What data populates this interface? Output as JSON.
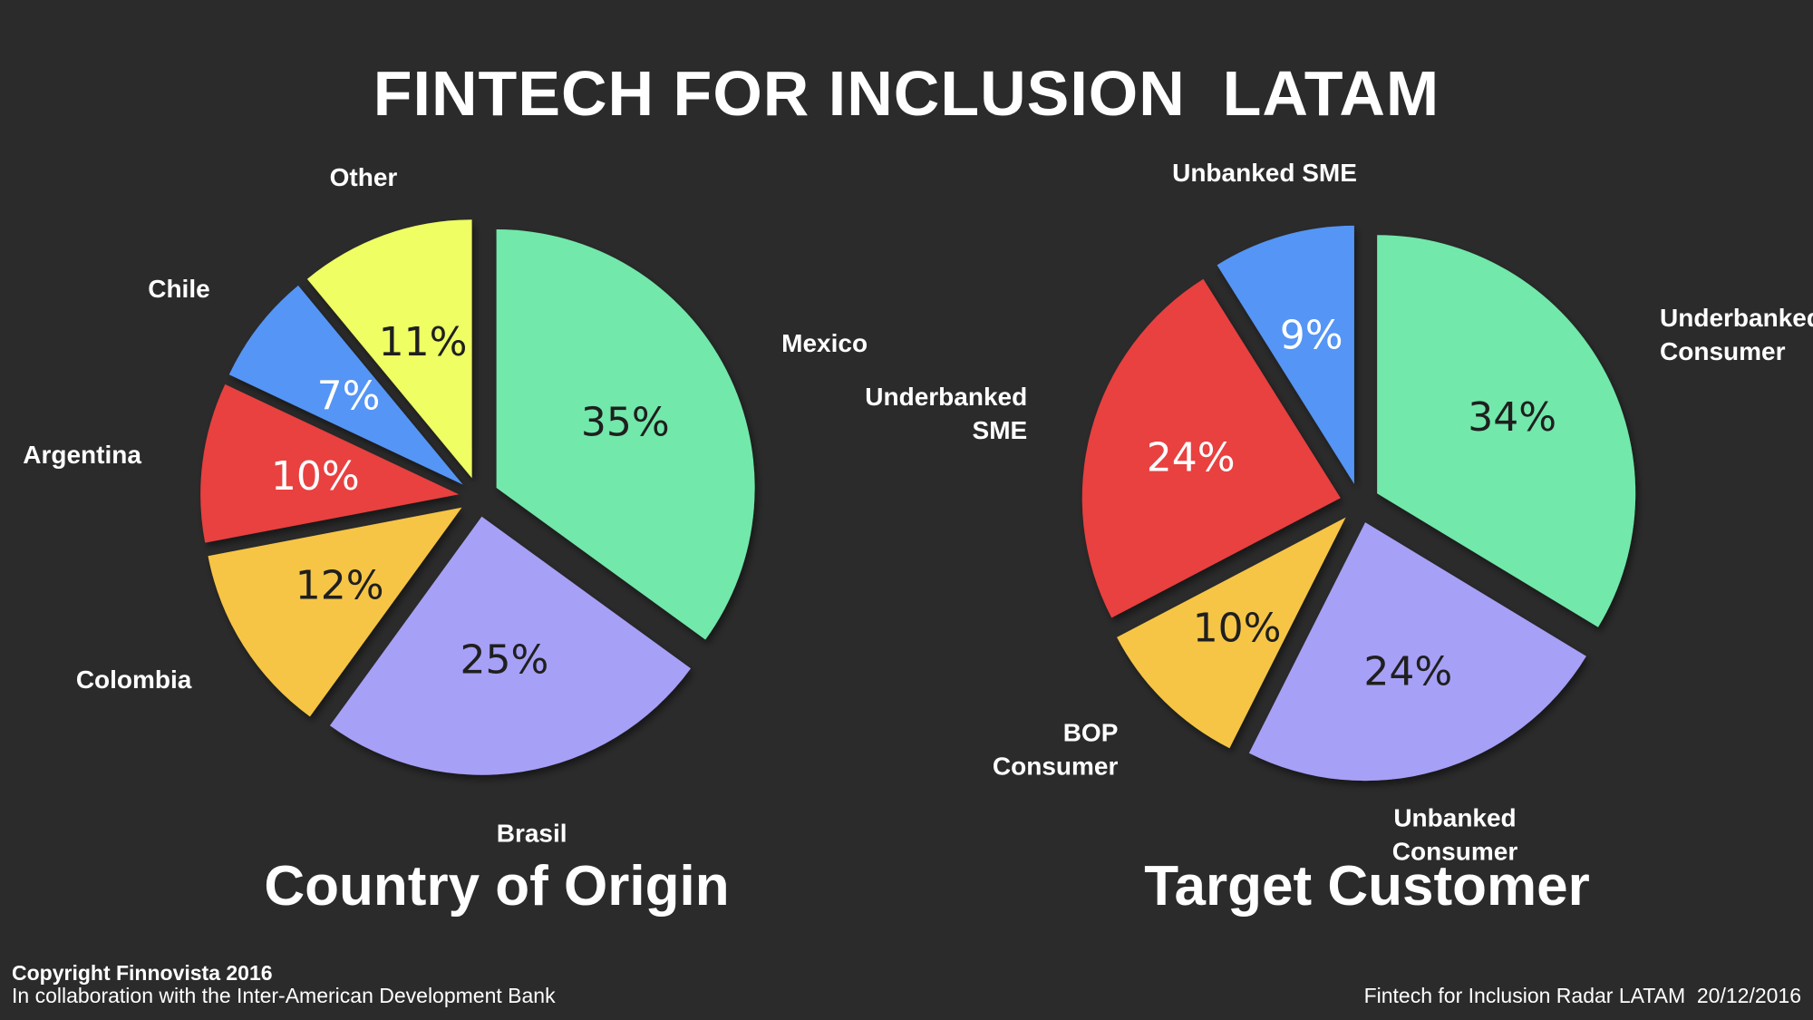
{
  "header": {
    "title": "FINTECH FOR INCLUSION  LATAM"
  },
  "footer": {
    "copyright": "Copyright Finnovista 2016",
    "collaboration": "In collaboration with the Inter-American Development Bank",
    "source": "Fintech for Inclusion Radar LATAM  20/12/2016"
  },
  "chart_data": [
    {
      "type": "pie",
      "title": "Country of Origin",
      "start_angle_deg": 0,
      "direction": "clockwise",
      "categories": [
        {
          "name": "Mexico",
          "value": 35,
          "label": "35%",
          "color": "#72e8aa",
          "text_color": "#1f1f1f",
          "label_lines": [
            "Mexico"
          ]
        },
        {
          "name": "Brasil",
          "value": 25,
          "label": "25%",
          "color": "#a7a0f7",
          "text_color": "#1f1f1f",
          "label_lines": [
            "Brasil"
          ]
        },
        {
          "name": "Colombia",
          "value": 12,
          "label": "12%",
          "color": "#f6c545",
          "text_color": "#1f1f1f",
          "label_lines": [
            "Colombia"
          ]
        },
        {
          "name": "Argentina",
          "value": 10,
          "label": "10%",
          "color": "#e94040",
          "text_color": "#ffffff",
          "label_lines": [
            "Argentina"
          ]
        },
        {
          "name": "Chile",
          "value": 7,
          "label": "7%",
          "color": "#5495f5",
          "text_color": "#ffffff",
          "label_lines": [
            "Chile"
          ]
        },
        {
          "name": "Other",
          "value": 11,
          "label": "11%",
          "color": "#eefe63",
          "text_color": "#1f1f1f",
          "label_lines": [
            "Other"
          ]
        }
      ]
    },
    {
      "type": "pie",
      "title": "Target Customer",
      "start_angle_deg": 0,
      "direction": "clockwise",
      "categories": [
        {
          "name": "Underbanked Consumer",
          "value": 34,
          "label": "34%",
          "color": "#72e8aa",
          "text_color": "#1f1f1f",
          "label_lines": [
            "Underbanked",
            "Consumer"
          ]
        },
        {
          "name": "Unbanked Consumer",
          "value": 24,
          "label": "24%",
          "color": "#a7a0f7",
          "text_color": "#1f1f1f",
          "label_lines": [
            "Unbanked",
            "Consumer"
          ]
        },
        {
          "name": "BOP Consumer",
          "value": 10,
          "label": "10%",
          "color": "#f6c545",
          "text_color": "#1f1f1f",
          "label_lines": [
            "BOP",
            "Consumer"
          ]
        },
        {
          "name": "Underbanked SME",
          "value": 24,
          "label": "24%",
          "color": "#e94040",
          "text_color": "#ffffff",
          "label_lines": [
            "Underbanked",
            "SME"
          ]
        },
        {
          "name": "Unbanked SME",
          "value": 9,
          "label": "9%",
          "color": "#5495f5",
          "text_color": "#ffffff",
          "label_lines": [
            "Unbanked SME"
          ]
        }
      ]
    }
  ]
}
